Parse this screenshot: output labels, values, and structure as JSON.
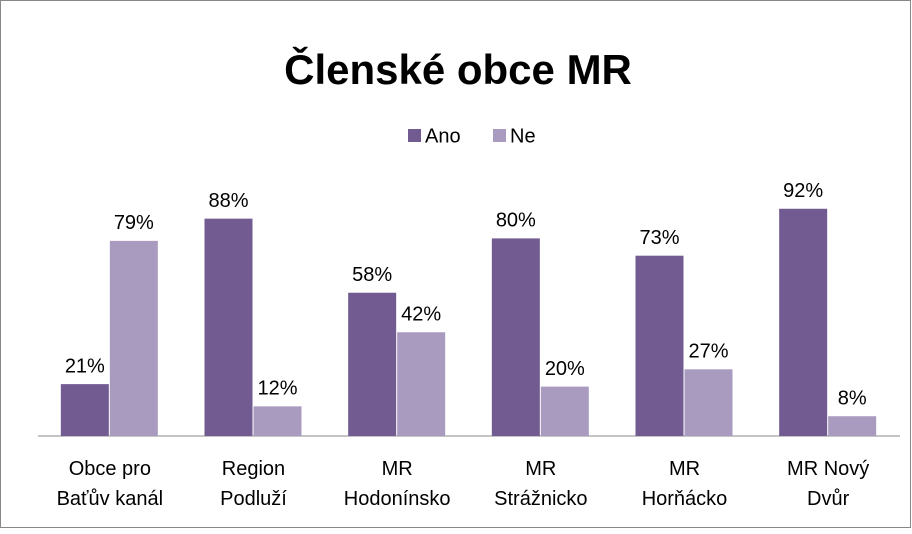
{
  "chart_data": {
    "type": "bar",
    "title": "Členské obce MR",
    "categories": [
      "Obce pro Baťův kanál",
      "Region Podluží",
      "MR Hodonínsko",
      "MR Strážnicko",
      "MR Horňácko",
      "MR Nový Dvůr"
    ],
    "series": [
      {
        "name": "Ano",
        "color": "#725b91",
        "values": [
          21,
          88,
          58,
          80,
          73,
          92
        ],
        "value_labels": [
          "21%",
          "88%",
          "58%",
          "80%",
          "73%",
          "92%"
        ]
      },
      {
        "name": "Ne",
        "color": "#a99bc0",
        "values": [
          79,
          12,
          42,
          20,
          27,
          8
        ],
        "value_labels": [
          "79%",
          "12%",
          "42%",
          "20%",
          "27%",
          "8%"
        ]
      }
    ],
    "ylim": [
      0,
      100
    ],
    "legend": "top"
  }
}
